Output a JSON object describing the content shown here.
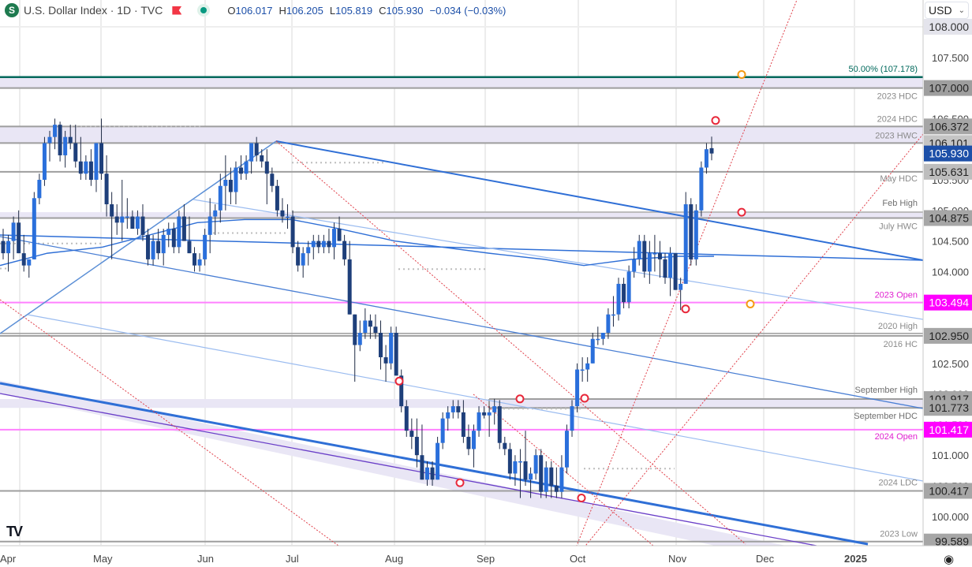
{
  "header": {
    "symbol_icon": "S",
    "title": "U.S. Dollar Index · 1D · TVC",
    "flag_icon": "red-flag-icon",
    "status_icon": "market-status-dot",
    "ohlc": {
      "open_label": "O",
      "open": "106.017",
      "high_label": "H",
      "high": "106.205",
      "low_label": "L",
      "low": "105.819",
      "close_label": "C",
      "close": "105.930",
      "change": "−0.034 (−0.03%)"
    }
  },
  "currency_select": {
    "value": "USD",
    "icon": "chevron-down-icon"
  },
  "settings_icon": "gear-icon",
  "chart_data": {
    "type": "candlestick",
    "title": "U.S. Dollar Index · 1D · TVC",
    "xlabel": "",
    "ylabel": "",
    "ylim": [
      99.4,
      108.4
    ],
    "grid": true,
    "x_ticks": [
      "Apr",
      "May",
      "Jun",
      "Jul",
      "Aug",
      "Sep",
      "Oct",
      "Nov",
      "Dec",
      "2025"
    ],
    "y_ticks": [
      "108.000",
      "107.500",
      "107.000",
      "106.500",
      "106.000",
      "105.500",
      "105.000",
      "104.500",
      "104.000",
      "103.500",
      "103.000",
      "102.500",
      "102.000",
      "101.500",
      "101.000",
      "100.500",
      "100.000"
    ],
    "last_price": 105.93,
    "levels": [
      {
        "label": "50.00% (107.178)",
        "price": 107.178,
        "color": "#00695c",
        "axis_label": ""
      },
      {
        "label": "2023 HDC",
        "price": 107.0,
        "color": "#9e9e9e",
        "axis_label": "107.000"
      },
      {
        "label": "2024 HDC",
        "price": 106.372,
        "color": "#9e9e9e",
        "axis_label": "106.372"
      },
      {
        "label": "2023 HWC",
        "price": 106.101,
        "color": "#9e9e9e",
        "axis_label": "106.101"
      },
      {
        "label": "May HDC",
        "price": 105.631,
        "color": "#9e9e9e",
        "axis_label": "105.631"
      },
      {
        "label": "Feb High",
        "price": 104.971,
        "color": "#9e9e9e",
        "axis_label": ""
      },
      {
        "label": "July HWC",
        "price": 104.875,
        "color": "#9e9e9e",
        "axis_label": "104.875"
      },
      {
        "label": "2023 Open",
        "price": 103.494,
        "color": "#ff00ff",
        "axis_label": "103.494"
      },
      {
        "label": "2020 High",
        "price": 102.99,
        "color": "#9e9e9e",
        "axis_label": ""
      },
      {
        "label": "2016 HC",
        "price": 102.95,
        "color": "#9e9e9e",
        "axis_label": "102.950"
      },
      {
        "label": "September High",
        "price": 101.917,
        "color": "#9e9e9e",
        "axis_label": "101.917"
      },
      {
        "label": "September HDC",
        "price": 101.773,
        "color": "#9e9e9e",
        "axis_label": "101.773"
      },
      {
        "label": "2024 Open",
        "price": 101.417,
        "color": "#ff00ff",
        "axis_label": "101.417"
      },
      {
        "label": "2024 LDC",
        "price": 100.417,
        "color": "#9e9e9e",
        "axis_label": "100.417"
      },
      {
        "label": "2023 Low",
        "price": 99.589,
        "color": "#9e9e9e",
        "axis_label": "99.589"
      }
    ],
    "candles": [
      {
        "o": 104.5,
        "h": 104.7,
        "l": 104.2,
        "c": 104.3
      },
      {
        "o": 104.3,
        "h": 104.6,
        "l": 104.0,
        "c": 104.5
      },
      {
        "o": 104.5,
        "h": 104.9,
        "l": 104.2,
        "c": 104.8
      },
      {
        "o": 104.8,
        "h": 105.0,
        "l": 104.3,
        "c": 104.3
      },
      {
        "o": 104.3,
        "h": 104.6,
        "l": 104.0,
        "c": 104.1
      },
      {
        "o": 104.1,
        "h": 104.2,
        "l": 103.9,
        "c": 104.2
      },
      {
        "o": 104.2,
        "h": 105.3,
        "l": 104.2,
        "c": 105.2
      },
      {
        "o": 105.2,
        "h": 105.6,
        "l": 105.1,
        "c": 105.5
      },
      {
        "o": 105.5,
        "h": 106.2,
        "l": 105.4,
        "c": 106.1
      },
      {
        "o": 106.1,
        "h": 106.3,
        "l": 105.8,
        "c": 106.2
      },
      {
        "o": 106.2,
        "h": 106.5,
        "l": 106.0,
        "c": 106.4
      },
      {
        "o": 106.4,
        "h": 106.45,
        "l": 105.8,
        "c": 105.9
      },
      {
        "o": 105.9,
        "h": 106.3,
        "l": 105.7,
        "c": 106.2
      },
      {
        "o": 106.2,
        "h": 106.4,
        "l": 106.0,
        "c": 106.1
      },
      {
        "o": 106.1,
        "h": 106.4,
        "l": 105.7,
        "c": 105.8
      },
      {
        "o": 105.8,
        "h": 106.2,
        "l": 105.5,
        "c": 105.6
      },
      {
        "o": 105.6,
        "h": 105.9,
        "l": 105.5,
        "c": 105.8
      },
      {
        "o": 105.8,
        "h": 106.0,
        "l": 105.4,
        "c": 105.5
      },
      {
        "o": 105.5,
        "h": 106.1,
        "l": 105.3,
        "c": 106.1
      },
      {
        "o": 106.1,
        "h": 106.5,
        "l": 105.5,
        "c": 105.6
      },
      {
        "o": 105.6,
        "h": 105.9,
        "l": 104.9,
        "c": 105.1
      },
      {
        "o": 105.1,
        "h": 105.3,
        "l": 104.2,
        "c": 104.9
      },
      {
        "o": 104.9,
        "h": 105.1,
        "l": 104.6,
        "c": 104.8
      },
      {
        "o": 104.8,
        "h": 105.5,
        "l": 104.5,
        "c": 104.9
      },
      {
        "o": 104.9,
        "h": 105.2,
        "l": 104.7,
        "c": 104.9
      },
      {
        "o": 104.9,
        "h": 105.0,
        "l": 104.7,
        "c": 104.7
      },
      {
        "o": 104.7,
        "h": 105.0,
        "l": 104.6,
        "c": 104.9
      },
      {
        "o": 104.9,
        "h": 105.1,
        "l": 104.5,
        "c": 104.6
      },
      {
        "o": 104.6,
        "h": 104.7,
        "l": 104.1,
        "c": 104.2
      },
      {
        "o": 104.2,
        "h": 104.6,
        "l": 104.1,
        "c": 104.5
      },
      {
        "o": 104.5,
        "h": 104.7,
        "l": 104.2,
        "c": 104.3
      },
      {
        "o": 104.3,
        "h": 104.7,
        "l": 104.1,
        "c": 104.6
      },
      {
        "o": 104.6,
        "h": 104.8,
        "l": 104.4,
        "c": 104.7
      },
      {
        "o": 104.7,
        "h": 104.8,
        "l": 104.3,
        "c": 104.4
      },
      {
        "o": 104.4,
        "h": 105.0,
        "l": 104.3,
        "c": 104.9
      },
      {
        "o": 104.9,
        "h": 105.1,
        "l": 104.5,
        "c": 104.5
      },
      {
        "o": 104.5,
        "h": 104.9,
        "l": 104.3,
        "c": 104.3
      },
      {
        "o": 104.3,
        "h": 104.4,
        "l": 104.0,
        "c": 104.1
      },
      {
        "o": 104.1,
        "h": 104.3,
        "l": 104.0,
        "c": 104.2
      },
      {
        "o": 104.2,
        "h": 104.7,
        "l": 104.1,
        "c": 104.6
      },
      {
        "o": 104.6,
        "h": 105.2,
        "l": 104.3,
        "c": 104.9
      },
      {
        "o": 104.9,
        "h": 105.1,
        "l": 104.6,
        "c": 105.0
      },
      {
        "o": 105.0,
        "h": 105.6,
        "l": 104.8,
        "c": 105.4
      },
      {
        "o": 105.4,
        "h": 105.9,
        "l": 105.0,
        "c": 105.5
      },
      {
        "o": 105.5,
        "h": 105.7,
        "l": 105.1,
        "c": 105.3
      },
      {
        "o": 105.3,
        "h": 105.8,
        "l": 105.1,
        "c": 105.7
      },
      {
        "o": 105.7,
        "h": 105.9,
        "l": 105.5,
        "c": 105.6
      },
      {
        "o": 105.6,
        "h": 105.9,
        "l": 105.5,
        "c": 105.8
      },
      {
        "o": 105.8,
        "h": 106.1,
        "l": 105.6,
        "c": 106.1
      },
      {
        "o": 106.1,
        "h": 106.2,
        "l": 105.8,
        "c": 105.9
      },
      {
        "o": 105.9,
        "h": 106.0,
        "l": 105.7,
        "c": 105.8
      },
      {
        "o": 105.8,
        "h": 106.0,
        "l": 105.1,
        "c": 105.6
      },
      {
        "o": 105.6,
        "h": 105.7,
        "l": 105.3,
        "c": 105.4
      },
      {
        "o": 105.4,
        "h": 105.5,
        "l": 104.9,
        "c": 105.0
      },
      {
        "o": 105.0,
        "h": 105.2,
        "l": 104.8,
        "c": 104.9
      },
      {
        "o": 104.9,
        "h": 105.1,
        "l": 104.7,
        "c": 104.9
      },
      {
        "o": 104.9,
        "h": 105.0,
        "l": 104.3,
        "c": 104.4
      },
      {
        "o": 104.4,
        "h": 104.5,
        "l": 104.0,
        "c": 104.1
      },
      {
        "o": 104.1,
        "h": 104.4,
        "l": 103.9,
        "c": 104.3
      },
      {
        "o": 104.3,
        "h": 104.5,
        "l": 104.1,
        "c": 104.4
      },
      {
        "o": 104.4,
        "h": 104.6,
        "l": 104.2,
        "c": 104.5
      },
      {
        "o": 104.5,
        "h": 104.6,
        "l": 104.3,
        "c": 104.4
      },
      {
        "o": 104.4,
        "h": 104.6,
        "l": 104.3,
        "c": 104.5
      },
      {
        "o": 104.5,
        "h": 104.7,
        "l": 104.3,
        "c": 104.4
      },
      {
        "o": 104.4,
        "h": 104.8,
        "l": 104.2,
        "c": 104.7
      },
      {
        "o": 104.7,
        "h": 104.9,
        "l": 104.5,
        "c": 104.5
      },
      {
        "o": 104.5,
        "h": 104.6,
        "l": 104.1,
        "c": 104.2
      },
      {
        "o": 104.2,
        "h": 104.5,
        "l": 103.3,
        "c": 103.3
      },
      {
        "o": 103.3,
        "h": 103.3,
        "l": 102.2,
        "c": 102.8
      },
      {
        "o": 102.8,
        "h": 103.2,
        "l": 102.7,
        "c": 103.0
      },
      {
        "o": 103.0,
        "h": 103.4,
        "l": 102.9,
        "c": 103.2
      },
      {
        "o": 103.2,
        "h": 103.3,
        "l": 102.9,
        "c": 103.1
      },
      {
        "o": 103.1,
        "h": 103.3,
        "l": 102.9,
        "c": 103.0
      },
      {
        "o": 103.0,
        "h": 103.2,
        "l": 102.4,
        "c": 102.6
      },
      {
        "o": 102.6,
        "h": 102.8,
        "l": 102.2,
        "c": 102.5
      },
      {
        "o": 102.5,
        "h": 103.1,
        "l": 102.4,
        "c": 103.0
      },
      {
        "o": 103.0,
        "h": 103.1,
        "l": 102.3,
        "c": 102.3
      },
      {
        "o": 102.3,
        "h": 102.4,
        "l": 101.7,
        "c": 101.8
      },
      {
        "o": 101.8,
        "h": 101.9,
        "l": 101.3,
        "c": 101.4
      },
      {
        "o": 101.4,
        "h": 101.6,
        "l": 101.1,
        "c": 101.3
      },
      {
        "o": 101.3,
        "h": 101.6,
        "l": 100.8,
        "c": 101.0
      },
      {
        "o": 101.0,
        "h": 101.5,
        "l": 100.6,
        "c": 100.6
      },
      {
        "o": 100.6,
        "h": 100.9,
        "l": 100.5,
        "c": 100.8
      },
      {
        "o": 100.8,
        "h": 100.9,
        "l": 100.5,
        "c": 100.6
      },
      {
        "o": 100.6,
        "h": 101.3,
        "l": 100.6,
        "c": 101.2
      },
      {
        "o": 101.2,
        "h": 101.7,
        "l": 101.1,
        "c": 101.6
      },
      {
        "o": 101.6,
        "h": 101.8,
        "l": 101.4,
        "c": 101.7
      },
      {
        "o": 101.7,
        "h": 101.9,
        "l": 101.6,
        "c": 101.8
      },
      {
        "o": 101.8,
        "h": 101.9,
        "l": 101.6,
        "c": 101.7
      },
      {
        "o": 101.7,
        "h": 101.9,
        "l": 101.2,
        "c": 101.3
      },
      {
        "o": 101.3,
        "h": 101.5,
        "l": 101.0,
        "c": 101.1
      },
      {
        "o": 101.1,
        "h": 101.5,
        "l": 100.8,
        "c": 101.4
      },
      {
        "o": 101.4,
        "h": 101.8,
        "l": 101.3,
        "c": 101.7
      },
      {
        "o": 101.7,
        "h": 101.8,
        "l": 101.6,
        "c": 101.65
      },
      {
        "o": 101.65,
        "h": 101.8,
        "l": 101.3,
        "c": 101.7
      },
      {
        "o": 101.7,
        "h": 101.92,
        "l": 101.5,
        "c": 101.8
      },
      {
        "o": 101.8,
        "h": 101.9,
        "l": 101.1,
        "c": 101.2
      },
      {
        "o": 101.2,
        "h": 101.3,
        "l": 101.0,
        "c": 101.1
      },
      {
        "o": 101.1,
        "h": 101.2,
        "l": 100.6,
        "c": 100.7
      },
      {
        "o": 100.7,
        "h": 101.0,
        "l": 100.5,
        "c": 100.9
      },
      {
        "o": 100.9,
        "h": 101.1,
        "l": 100.3,
        "c": 100.9
      },
      {
        "o": 100.9,
        "h": 101.4,
        "l": 100.5,
        "c": 100.6
      },
      {
        "o": 100.6,
        "h": 100.8,
        "l": 100.3,
        "c": 100.7
      },
      {
        "o": 100.7,
        "h": 101.1,
        "l": 100.6,
        "c": 101.0
      },
      {
        "o": 101.0,
        "h": 101.1,
        "l": 100.3,
        "c": 100.4
      },
      {
        "o": 100.4,
        "h": 100.9,
        "l": 100.3,
        "c": 100.8
      },
      {
        "o": 100.8,
        "h": 100.9,
        "l": 100.3,
        "c": 100.5
      },
      {
        "o": 100.5,
        "h": 100.8,
        "l": 100.3,
        "c": 100.4
      },
      {
        "o": 100.4,
        "h": 101.0,
        "l": 100.3,
        "c": 100.8
      },
      {
        "o": 100.8,
        "h": 101.5,
        "l": 100.7,
        "c": 101.4
      },
      {
        "o": 101.4,
        "h": 101.9,
        "l": 101.3,
        "c": 101.8
      },
      {
        "o": 101.8,
        "h": 102.5,
        "l": 101.7,
        "c": 102.4
      },
      {
        "o": 102.4,
        "h": 102.6,
        "l": 102.2,
        "c": 102.4
      },
      {
        "o": 102.4,
        "h": 102.6,
        "l": 102.2,
        "c": 102.5
      },
      {
        "o": 102.5,
        "h": 103.0,
        "l": 102.5,
        "c": 102.9
      },
      {
        "o": 102.9,
        "h": 103.1,
        "l": 102.8,
        "c": 102.9
      },
      {
        "o": 102.9,
        "h": 103.0,
        "l": 102.8,
        "c": 103.0
      },
      {
        "o": 103.0,
        "h": 103.4,
        "l": 102.9,
        "c": 103.3
      },
      {
        "o": 103.3,
        "h": 103.6,
        "l": 103.1,
        "c": 103.3
      },
      {
        "o": 103.3,
        "h": 103.9,
        "l": 103.2,
        "c": 103.8
      },
      {
        "o": 103.8,
        "h": 103.9,
        "l": 103.4,
        "c": 103.5
      },
      {
        "o": 103.5,
        "h": 104.1,
        "l": 103.4,
        "c": 104.0
      },
      {
        "o": 104.0,
        "h": 104.4,
        "l": 103.9,
        "c": 104.2
      },
      {
        "o": 104.2,
        "h": 104.6,
        "l": 104.1,
        "c": 104.5
      },
      {
        "o": 104.5,
        "h": 104.6,
        "l": 103.9,
        "c": 104.0
      },
      {
        "o": 104.0,
        "h": 104.5,
        "l": 103.8,
        "c": 104.3
      },
      {
        "o": 104.3,
        "h": 104.6,
        "l": 104.0,
        "c": 104.3
      },
      {
        "o": 104.3,
        "h": 104.5,
        "l": 103.9,
        "c": 104.2
      },
      {
        "o": 104.2,
        "h": 104.3,
        "l": 103.8,
        "c": 103.9
      },
      {
        "o": 103.9,
        "h": 104.4,
        "l": 103.6,
        "c": 104.3
      },
      {
        "o": 104.3,
        "h": 104.3,
        "l": 103.7,
        "c": 103.7
      },
      {
        "o": 103.7,
        "h": 103.9,
        "l": 103.37,
        "c": 103.8
      },
      {
        "o": 103.8,
        "h": 105.3,
        "l": 103.8,
        "c": 105.1
      },
      {
        "o": 105.1,
        "h": 105.2,
        "l": 104.1,
        "c": 104.2
      },
      {
        "o": 104.2,
        "h": 105.1,
        "l": 104.1,
        "c": 105.0
      },
      {
        "o": 105.0,
        "h": 105.8,
        "l": 104.9,
        "c": 105.7
      },
      {
        "o": 105.7,
        "h": 106.1,
        "l": 105.6,
        "c": 106.0
      },
      {
        "o": 106.017,
        "h": 106.205,
        "l": 105.819,
        "c": 105.93
      }
    ],
    "moving_average": [
      [
        0,
        104.1
      ],
      [
        60,
        104.3
      ],
      [
        130,
        104.4
      ],
      [
        190,
        104.6
      ],
      [
        250,
        104.8
      ],
      [
        310,
        104.85
      ],
      [
        370,
        104.85
      ],
      [
        430,
        104.7
      ],
      [
        500,
        104.5
      ],
      [
        560,
        104.4
      ],
      [
        620,
        104.3
      ],
      [
        690,
        104.2
      ],
      [
        740,
        104.1
      ],
      [
        800,
        104.2
      ],
      [
        860,
        104.25
      ],
      [
        905,
        104.25
      ]
    ],
    "markers": [
      {
        "type": "red-circle",
        "x": 506,
        "price": 102.21
      },
      {
        "type": "red-circle",
        "x": 583,
        "price": 100.55
      },
      {
        "type": "red-circle",
        "x": 659,
        "price": 101.92
      },
      {
        "type": "red-circle",
        "x": 741,
        "price": 101.93
      },
      {
        "type": "red-circle",
        "x": 737,
        "price": 100.3
      },
      {
        "type": "red-circle",
        "x": 869,
        "price": 103.39
      },
      {
        "type": "red-circle",
        "x": 907,
        "price": 106.47
      },
      {
        "type": "red-circle",
        "x": 940,
        "price": 104.97
      },
      {
        "type": "orange-circle",
        "x": 940,
        "price": 107.22
      },
      {
        "type": "orange-circle",
        "x": 951,
        "price": 103.47
      }
    ]
  }
}
